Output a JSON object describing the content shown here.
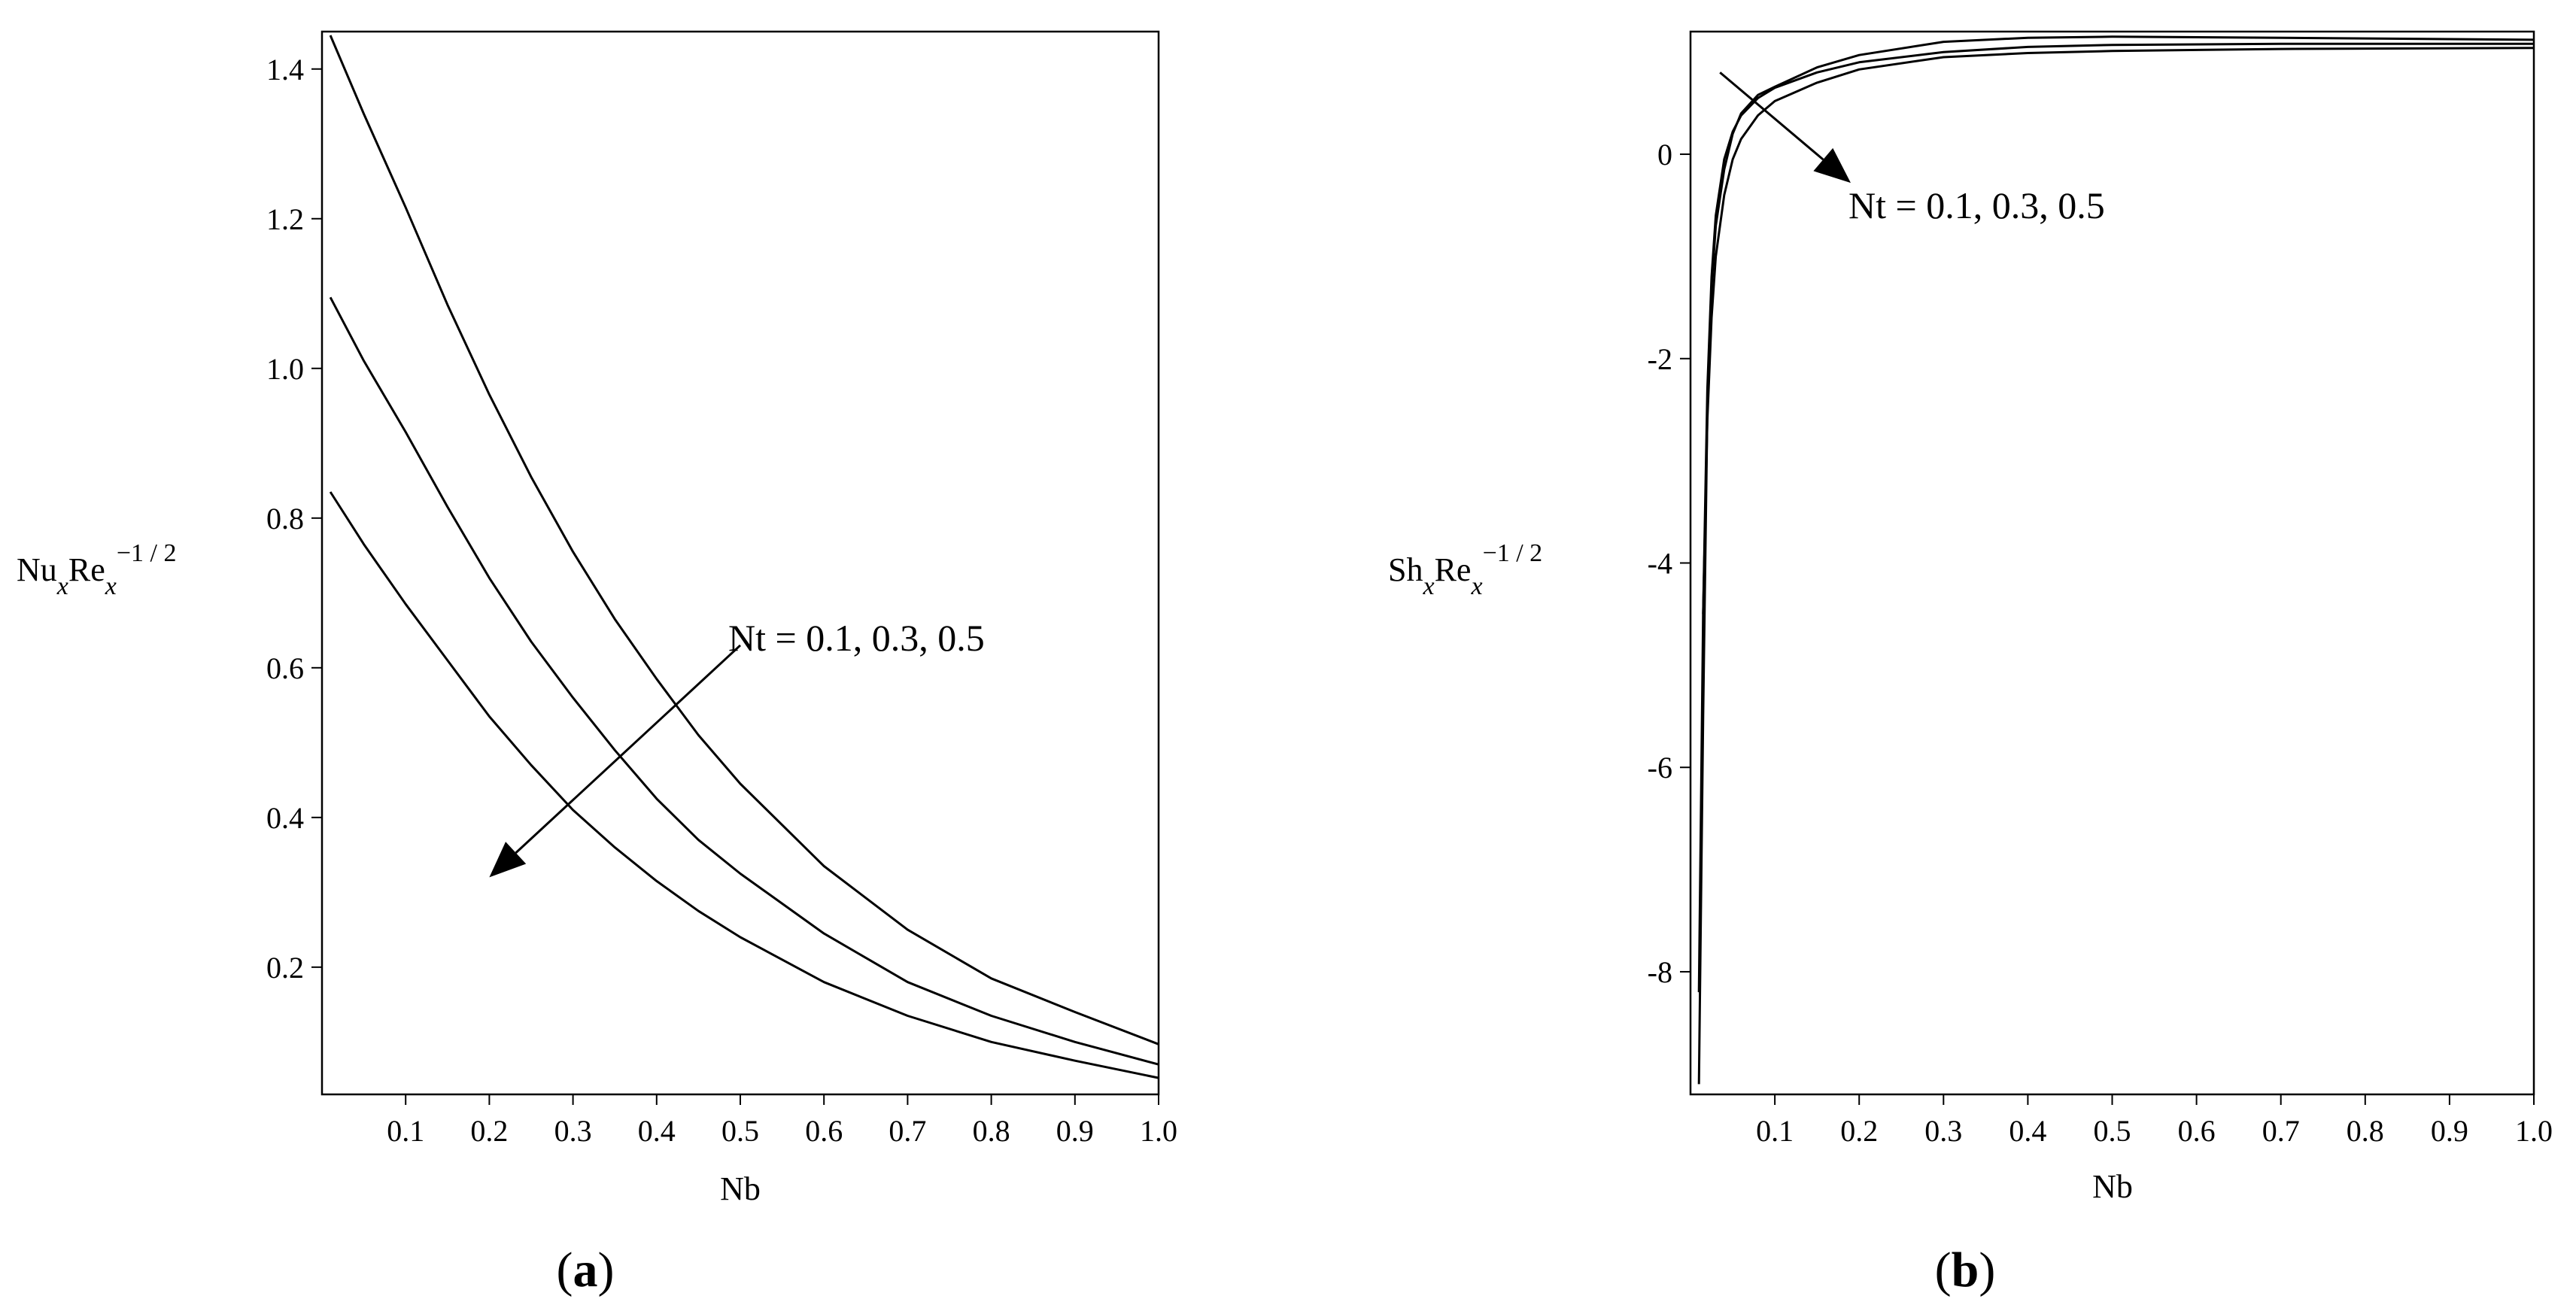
{
  "panel_labels": {
    "a": {
      "open": "(",
      "letter": "a",
      "close": ")"
    },
    "b": {
      "open": "(",
      "letter": "b",
      "close": ")"
    }
  },
  "chart_data": [
    {
      "type": "line",
      "panel": "a",
      "xlabel": "Nb",
      "ylabel": {
        "main": "Nu",
        "sub1": "x",
        "mid": "Re",
        "sub2": "x",
        "sup": "−1 / 2"
      },
      "xlim": [
        0.0,
        1.0
      ],
      "ylim": [
        0.03,
        1.45
      ],
      "x_ticks": [
        0.1,
        0.2,
        0.3,
        0.4,
        0.5,
        0.6,
        0.7,
        0.8,
        0.9,
        1.0
      ],
      "x_tick_labels": [
        "0.1",
        "0.2",
        "0.3",
        "0.4",
        "0.5",
        "0.6",
        "0.7",
        "0.8",
        "0.9",
        "1.0"
      ],
      "y_ticks": [
        0.2,
        0.4,
        0.6,
        0.8,
        1.0,
        1.2,
        1.4
      ],
      "y_tick_labels": [
        "0.2",
        "0.4",
        "0.6",
        "0.8",
        "1.0",
        "1.2",
        "1.4"
      ],
      "grid": false,
      "annotation": "Nt = 0.1, 0.3, 0.5",
      "arrow": {
        "from": [
          0.5,
          0.63
        ],
        "to": [
          0.2,
          0.32
        ]
      },
      "series": [
        {
          "x": [
            0.01,
            0.05,
            0.1,
            0.15,
            0.2,
            0.25,
            0.3,
            0.35,
            0.4,
            0.45,
            0.5,
            0.6,
            0.7,
            0.8,
            0.9,
            1.0
          ],
          "values": [
            1.445,
            1.34,
            1.215,
            1.085,
            0.965,
            0.855,
            0.755,
            0.665,
            0.585,
            0.51,
            0.445,
            0.335,
            0.25,
            0.185,
            0.14,
            0.097
          ]
        },
        {
          "x": [
            0.01,
            0.05,
            0.1,
            0.15,
            0.2,
            0.25,
            0.3,
            0.35,
            0.4,
            0.45,
            0.5,
            0.6,
            0.7,
            0.8,
            0.9,
            1.0
          ],
          "values": [
            1.095,
            1.01,
            0.915,
            0.815,
            0.72,
            0.635,
            0.56,
            0.49,
            0.425,
            0.37,
            0.325,
            0.245,
            0.18,
            0.135,
            0.1,
            0.07
          ]
        },
        {
          "x": [
            0.01,
            0.05,
            0.1,
            0.15,
            0.2,
            0.25,
            0.3,
            0.35,
            0.4,
            0.45,
            0.5,
            0.6,
            0.7,
            0.8,
            0.9,
            1.0
          ],
          "values": [
            0.835,
            0.765,
            0.685,
            0.61,
            0.535,
            0.47,
            0.41,
            0.36,
            0.315,
            0.275,
            0.24,
            0.18,
            0.135,
            0.1,
            0.075,
            0.052
          ]
        }
      ]
    },
    {
      "type": "line",
      "panel": "b",
      "xlabel": "Nb",
      "ylabel": {
        "main": "Sh",
        "sub1": "x",
        "mid": "Re",
        "sub2": "x",
        "sup": "−1 / 2"
      },
      "xlim": [
        0.0,
        1.0
      ],
      "ylim": [
        -9.2,
        1.2
      ],
      "x_ticks": [
        0.1,
        0.2,
        0.3,
        0.4,
        0.5,
        0.6,
        0.7,
        0.8,
        0.9,
        1.0
      ],
      "x_tick_labels": [
        "0.1",
        "0.2",
        "0.3",
        "0.4",
        "0.5",
        "0.6",
        "0.7",
        "0.8",
        "0.9",
        "1.0"
      ],
      "y_ticks": [
        -8,
        -6,
        -4,
        -2,
        0
      ],
      "y_tick_labels": [
        "-8",
        "-6",
        "-4",
        "-2",
        "0"
      ],
      "grid": false,
      "annotation": "Nt = 0.1, 0.3, 0.5",
      "arrow": {
        "from": [
          0.035,
          0.8
        ],
        "to": [
          0.19,
          -0.28
        ]
      },
      "series": [
        {
          "x": [
            0.01,
            0.015,
            0.02,
            0.025,
            0.03,
            0.04,
            0.05,
            0.06,
            0.08,
            0.1,
            0.15,
            0.2,
            0.3,
            0.4,
            0.5,
            0.7,
            1.0
          ],
          "values": [
            -9.1,
            -5.5,
            -2.5,
            -1.3,
            -0.7,
            -0.15,
            0.2,
            0.4,
            0.58,
            0.66,
            0.85,
            0.97,
            1.1,
            1.14,
            1.15,
            1.14,
            1.12
          ]
        },
        {
          "x": [
            0.01,
            0.015,
            0.02,
            0.025,
            0.03,
            0.04,
            0.05,
            0.06,
            0.08,
            0.1,
            0.15,
            0.2,
            0.3,
            0.4,
            0.5,
            0.7,
            1.0
          ],
          "values": [
            -8.2,
            -4.5,
            -2.3,
            -1.2,
            -0.6,
            -0.05,
            0.22,
            0.38,
            0.55,
            0.65,
            0.8,
            0.9,
            1.0,
            1.05,
            1.07,
            1.08,
            1.08
          ]
        },
        {
          "x": [
            0.015,
            0.02,
            0.025,
            0.03,
            0.04,
            0.05,
            0.06,
            0.08,
            0.1,
            0.15,
            0.2,
            0.3,
            0.4,
            0.5,
            0.7,
            1.0
          ],
          "values": [
            -4.5,
            -2.6,
            -1.6,
            -1.0,
            -0.4,
            -0.05,
            0.15,
            0.38,
            0.52,
            0.7,
            0.83,
            0.95,
            0.99,
            1.01,
            1.03,
            1.04
          ]
        }
      ]
    }
  ]
}
